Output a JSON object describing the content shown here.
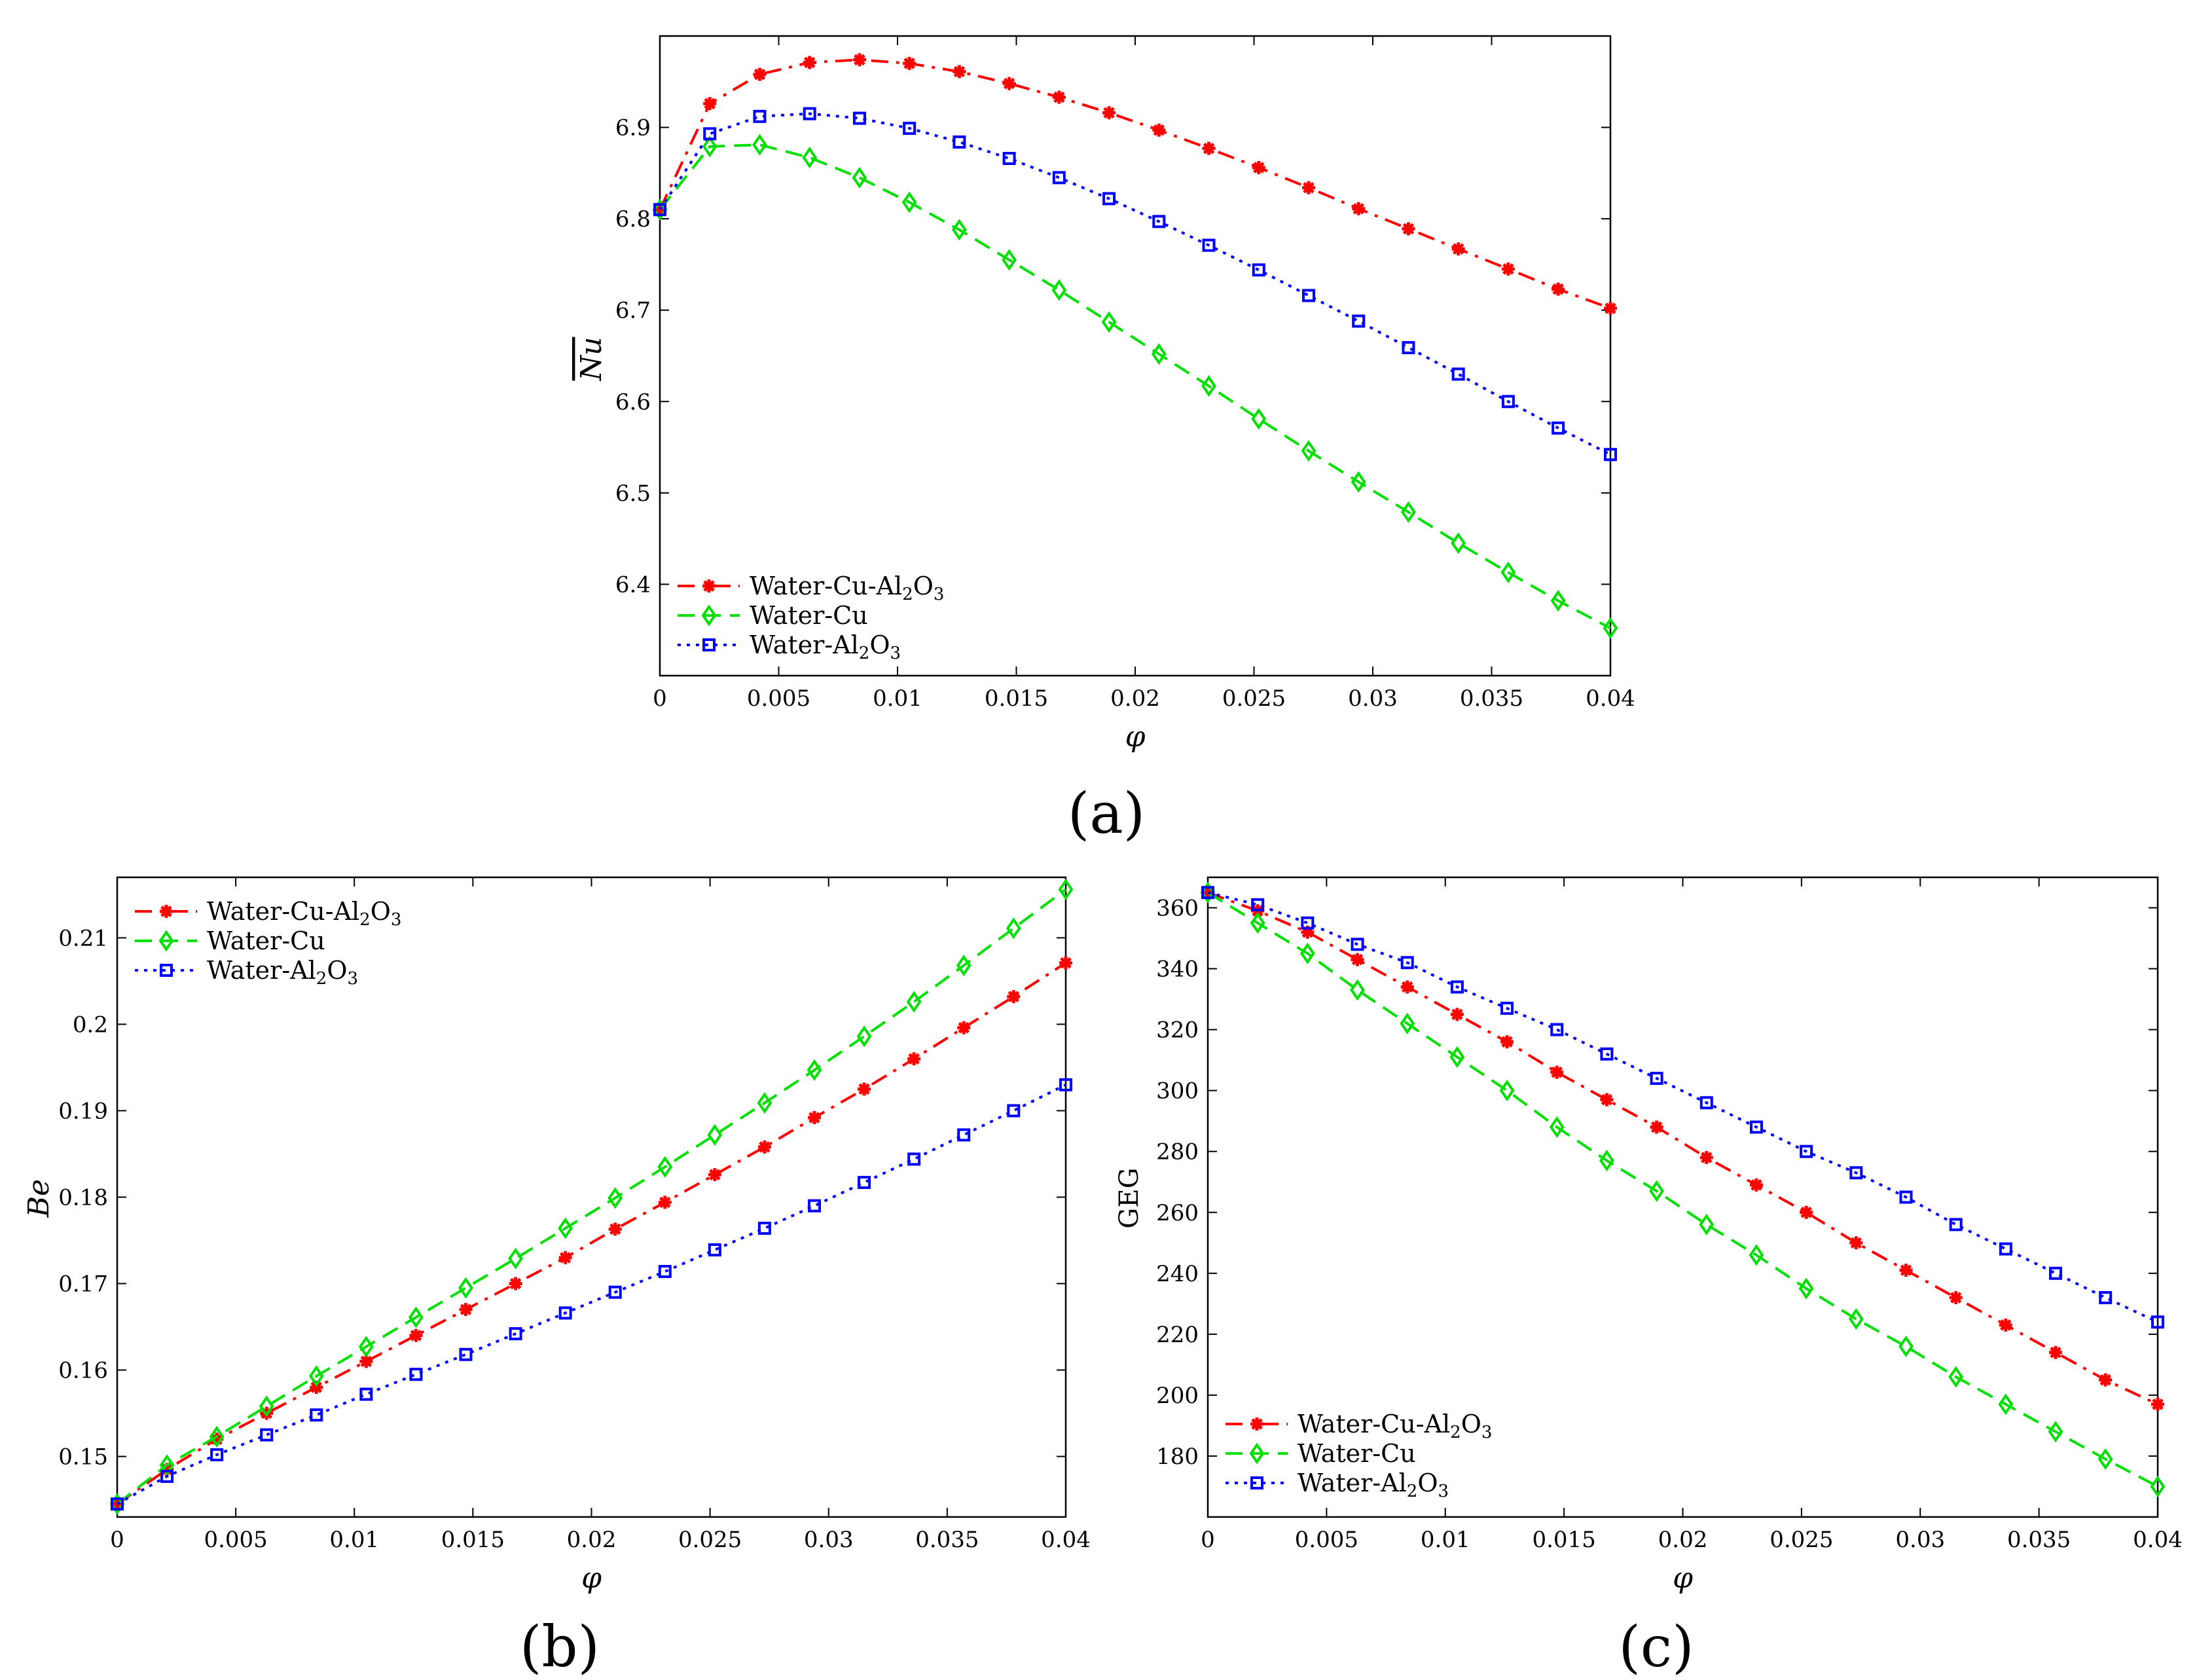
{
  "chart_data": [
    {
      "type": "line",
      "caption": "(a)",
      "xlabel": "φ",
      "ylabel": "Nu",
      "ylabel_overline": true,
      "xlim": [
        0,
        0.04
      ],
      "ylim": [
        6.3,
        7.0
      ],
      "xticks": [
        "0",
        "0.005",
        "0.01",
        "0.015",
        "0.02",
        "0.025",
        "0.03",
        "0.035",
        "0.04"
      ],
      "yticks": [
        "6.4",
        "6.5",
        "6.6",
        "6.7",
        "6.8",
        "6.9"
      ],
      "legend_position": "bottom-left",
      "x": [
        0,
        0.0021,
        0.0042,
        0.0063,
        0.0084,
        0.0105,
        0.0126,
        0.0147,
        0.0168,
        0.0189,
        0.021,
        0.0231,
        0.0252,
        0.0273,
        0.0294,
        0.0315,
        0.0336,
        0.0357,
        0.0378,
        0.04
      ],
      "series": [
        {
          "name": "Water-Cu-Al2O3",
          "color": "#ff0000",
          "dash": "dashdot",
          "marker": "star",
          "values": [
            6.81,
            6.926,
            6.958,
            6.971,
            6.974,
            6.97,
            6.961,
            6.948,
            6.933,
            6.916,
            6.897,
            6.877,
            6.856,
            6.834,
            6.811,
            6.789,
            6.767,
            6.745,
            6.723,
            6.702
          ]
        },
        {
          "name": "Water-Cu",
          "color": "#00e000",
          "dash": "dashed",
          "marker": "diamond",
          "values": [
            6.81,
            6.879,
            6.881,
            6.867,
            6.845,
            6.818,
            6.788,
            6.755,
            6.722,
            6.687,
            6.652,
            6.617,
            6.581,
            6.546,
            6.512,
            6.479,
            6.445,
            6.413,
            6.382,
            6.352
          ]
        },
        {
          "name": "Water-Al2O3",
          "color": "#0000ff",
          "dash": "dotted",
          "marker": "square",
          "values": [
            6.81,
            6.893,
            6.912,
            6.915,
            6.91,
            6.899,
            6.884,
            6.866,
            6.845,
            6.822,
            6.797,
            6.771,
            6.744,
            6.716,
            6.688,
            6.659,
            6.63,
            6.6,
            6.571,
            6.542
          ]
        }
      ]
    },
    {
      "type": "line",
      "caption": "(b)",
      "xlabel": "φ",
      "ylabel": "Be",
      "xlim": [
        0,
        0.04
      ],
      "ylim": [
        0.143,
        0.217
      ],
      "xticks": [
        "0",
        "0.005",
        "0.01",
        "0.015",
        "0.02",
        "0.025",
        "0.03",
        "0.035",
        "0.04"
      ],
      "yticks": [
        "0.15",
        "0.16",
        "0.17",
        "0.18",
        "0.19",
        "0.2",
        "0.21"
      ],
      "legend_position": "top-left",
      "x": [
        0,
        0.0021,
        0.0042,
        0.0063,
        0.0084,
        0.0105,
        0.0126,
        0.0147,
        0.0168,
        0.0189,
        0.021,
        0.0231,
        0.0252,
        0.0273,
        0.0294,
        0.0315,
        0.0336,
        0.0357,
        0.0378,
        0.04
      ],
      "series": [
        {
          "name": "Water-Cu-Al2O3",
          "color": "#ff0000",
          "dash": "dashdot",
          "marker": "star",
          "values": [
            0.1445,
            0.1485,
            0.152,
            0.155,
            0.158,
            0.161,
            0.164,
            0.167,
            0.17,
            0.173,
            0.1763,
            0.1794,
            0.1826,
            0.1858,
            0.1892,
            0.1925,
            0.196,
            0.1996,
            0.2032,
            0.2071
          ]
        },
        {
          "name": "Water-Cu",
          "color": "#00e000",
          "dash": "dashed",
          "marker": "diamond",
          "values": [
            0.1445,
            0.149,
            0.1523,
            0.1558,
            0.1593,
            0.1627,
            0.1661,
            0.1695,
            0.1729,
            0.1764,
            0.1799,
            0.1835,
            0.1872,
            0.1909,
            0.1947,
            0.1986,
            0.2026,
            0.2068,
            0.2111,
            0.2156
          ]
        },
        {
          "name": "Water-Al2O3",
          "color": "#0000ff",
          "dash": "dotted",
          "marker": "square",
          "values": [
            0.1445,
            0.1477,
            0.1502,
            0.1525,
            0.1548,
            0.1572,
            0.1595,
            0.1618,
            0.1642,
            0.1666,
            0.169,
            0.1714,
            0.1739,
            0.1764,
            0.179,
            0.1817,
            0.1844,
            0.1872,
            0.19,
            0.193
          ]
        }
      ]
    },
    {
      "type": "line",
      "caption": "(c)",
      "xlabel": "φ",
      "ylabel": "GEG",
      "xlim": [
        0,
        0.04
      ],
      "ylim": [
        160,
        370
      ],
      "xticks": [
        "0",
        "0.005",
        "0.01",
        "0.015",
        "0.02",
        "0.025",
        "0.03",
        "0.035",
        "0.04"
      ],
      "yticks": [
        "180",
        "200",
        "220",
        "240",
        "260",
        "280",
        "300",
        "320",
        "340",
        "360"
      ],
      "legend_position": "bottom-left",
      "x": [
        0,
        0.0021,
        0.0042,
        0.0063,
        0.0084,
        0.0105,
        0.0126,
        0.0147,
        0.0168,
        0.0189,
        0.021,
        0.0231,
        0.0252,
        0.0273,
        0.0294,
        0.0315,
        0.0336,
        0.0357,
        0.0378,
        0.04
      ],
      "series": [
        {
          "name": "Water-Cu-Al2O3",
          "color": "#ff0000",
          "dash": "dashdot",
          "marker": "star",
          "values": [
            365,
            359,
            352,
            343,
            334,
            325,
            316,
            306,
            297,
            288,
            278,
            269,
            260,
            250,
            241,
            232,
            223,
            214,
            205,
            197
          ]
        },
        {
          "name": "Water-Cu",
          "color": "#00e000",
          "dash": "dashed",
          "marker": "diamond",
          "values": [
            365,
            355,
            345,
            333,
            322,
            311,
            300,
            288,
            277,
            267,
            256,
            246,
            235,
            225,
            216,
            206,
            197,
            188,
            179,
            170
          ]
        },
        {
          "name": "Water-Al2O3",
          "color": "#0000ff",
          "dash": "dotted",
          "marker": "square",
          "values": [
            365,
            361,
            355,
            348,
            342,
            334,
            327,
            320,
            312,
            304,
            296,
            288,
            280,
            273,
            265,
            256,
            248,
            240,
            232,
            224
          ]
        }
      ]
    }
  ]
}
